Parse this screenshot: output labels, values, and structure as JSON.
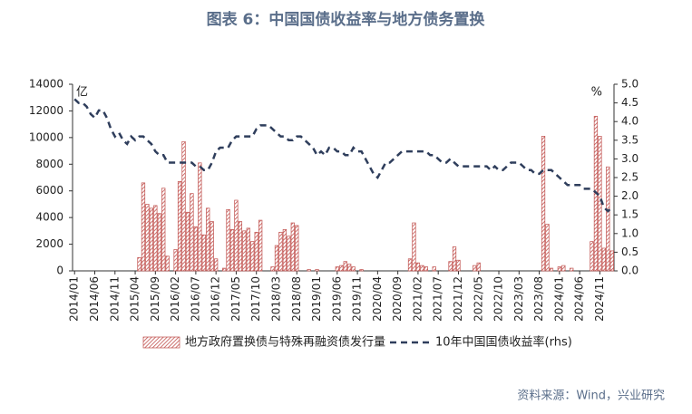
{
  "chart_data": {
    "type": "bar_line",
    "title": "图表 6：中国国债收益率与地方债务置换",
    "y_unit": "亿",
    "y2_unit": "%",
    "source": "资料来源：Wind，兴业研究",
    "categories": [
      "2014/01",
      null,
      null,
      null,
      null,
      "2014/06",
      null,
      null,
      null,
      null,
      "2014/11",
      null,
      null,
      null,
      null,
      "2015/04",
      null,
      null,
      null,
      null,
      "2015/09",
      null,
      null,
      null,
      null,
      "2016/02",
      null,
      null,
      null,
      null,
      "2016/07",
      null,
      null,
      null,
      null,
      "2016/12",
      null,
      null,
      null,
      null,
      "2017/05",
      null,
      null,
      null,
      null,
      "2017/10",
      null,
      null,
      null,
      null,
      "2018/03",
      null,
      null,
      null,
      null,
      "2018/08",
      null,
      null,
      null,
      null,
      "2019/01",
      null,
      null,
      null,
      null,
      "2019/06",
      null,
      null,
      null,
      null,
      "2019/11",
      null,
      null,
      null,
      null,
      "2020/04",
      null,
      null,
      null,
      null,
      "2020/09",
      null,
      null,
      null,
      null,
      "2021/02",
      null,
      null,
      null,
      null,
      "2021/07",
      null,
      null,
      null,
      null,
      "2021/12",
      null,
      null,
      null,
      null,
      "2022/05",
      null,
      null,
      null,
      null,
      "2022/10",
      null,
      null,
      null,
      null,
      "2023/03",
      null,
      null,
      null,
      null,
      "2023/08",
      null,
      null,
      null,
      null,
      "2024/01",
      null,
      null,
      null,
      null,
      "2024/06",
      null,
      null,
      null,
      null,
      "2024/11",
      null,
      null,
      null
    ],
    "series": [
      {
        "name": "地方政府置换债与特殊再融资债发行量",
        "kind": "bar",
        "color": "#c0504d",
        "values": [
          0,
          0,
          0,
          0,
          0,
          0,
          0,
          0,
          0,
          0,
          0,
          0,
          0,
          0,
          0,
          0,
          1000,
          6600,
          5000,
          4700,
          4900,
          4300,
          6200,
          1100,
          0,
          1600,
          6700,
          9700,
          4400,
          5800,
          3300,
          8100,
          2700,
          4700,
          3700,
          900,
          0,
          200,
          4600,
          3100,
          5300,
          3700,
          3000,
          3200,
          2200,
          2900,
          3800,
          0,
          0,
          300,
          1900,
          2900,
          3100,
          2600,
          3600,
          3400,
          0,
          0,
          100,
          0,
          100,
          0,
          0,
          0,
          0,
          300,
          400,
          700,
          500,
          300,
          0,
          100,
          0,
          0,
          0,
          0,
          0,
          0,
          0,
          0,
          0,
          0,
          0,
          900,
          3600,
          600,
          400,
          300,
          0,
          300,
          0,
          0,
          0,
          700,
          1800,
          800,
          0,
          0,
          0,
          400,
          600,
          0,
          0,
          0,
          0,
          0,
          0,
          0,
          0,
          0,
          0,
          0,
          0,
          0,
          0,
          0,
          10100,
          3500,
          200,
          0,
          300,
          400,
          0,
          200,
          0,
          0,
          0,
          0,
          2200,
          11600,
          10100,
          1700,
          7800,
          1500
        ]
      },
      {
        "name": "10年中国国债收益率(rhs)",
        "kind": "line",
        "axis": "y2",
        "color": "#2f3e5c",
        "values": [
          4.6,
          4.5,
          4.5,
          4.4,
          4.2,
          4.1,
          4.3,
          4.3,
          4.1,
          3.8,
          3.6,
          3.7,
          3.5,
          3.4,
          3.6,
          3.5,
          3.6,
          3.6,
          3.5,
          3.4,
          3.2,
          3.1,
          3.1,
          2.9,
          2.9,
          2.9,
          2.9,
          2.9,
          2.9,
          2.9,
          2.8,
          2.8,
          2.7,
          2.7,
          2.9,
          3.2,
          3.3,
          3.3,
          3.3,
          3.5,
          3.6,
          3.6,
          3.6,
          3.6,
          3.6,
          3.8,
          3.9,
          3.9,
          3.9,
          3.8,
          3.7,
          3.6,
          3.6,
          3.5,
          3.5,
          3.6,
          3.6,
          3.5,
          3.4,
          3.3,
          3.1,
          3.2,
          3.1,
          3.3,
          3.3,
          3.2,
          3.2,
          3.1,
          3.1,
          3.3,
          3.2,
          3.2,
          3.0,
          2.8,
          2.6,
          2.5,
          2.7,
          2.9,
          2.9,
          3.0,
          3.1,
          3.2,
          3.2,
          3.2,
          3.2,
          3.2,
          3.2,
          3.2,
          3.1,
          3.1,
          3.0,
          2.9,
          2.9,
          3.0,
          2.9,
          2.8,
          2.8,
          2.8,
          2.8,
          2.8,
          2.8,
          2.8,
          2.8,
          2.7,
          2.8,
          2.7,
          2.7,
          2.8,
          2.9,
          2.9,
          2.9,
          2.8,
          2.7,
          2.7,
          2.6,
          2.6,
          2.7,
          2.7,
          2.7,
          2.6,
          2.5,
          2.4,
          2.3,
          2.3,
          2.3,
          2.3,
          2.2,
          2.2,
          2.2,
          2.1,
          2.0,
          1.7,
          1.6,
          1.7
        ]
      }
    ],
    "ylim": [
      0,
      14000
    ],
    "yticks": [
      0,
      2000,
      4000,
      6000,
      8000,
      10000,
      12000,
      14000
    ],
    "y2lim": [
      0,
      5
    ],
    "y2ticks": [
      {
        "value": 0,
        "label": "0.0"
      },
      {
        "value": 0.5,
        "label": "0.5"
      },
      {
        "value": 1,
        "label": "1.0"
      },
      {
        "value": 1.5,
        "label": "1.5"
      },
      {
        "value": 2,
        "label": "2.0"
      },
      {
        "value": 2.5,
        "label": "2.5"
      },
      {
        "value": 3,
        "label": "3.0"
      },
      {
        "value": 3.5,
        "label": "3.5"
      },
      {
        "value": 4,
        "label": "4.0"
      },
      {
        "value": 4.5,
        "label": "4.5"
      },
      {
        "value": 5,
        "label": "5.0"
      }
    ],
    "grid": false,
    "legend": "bottom"
  }
}
